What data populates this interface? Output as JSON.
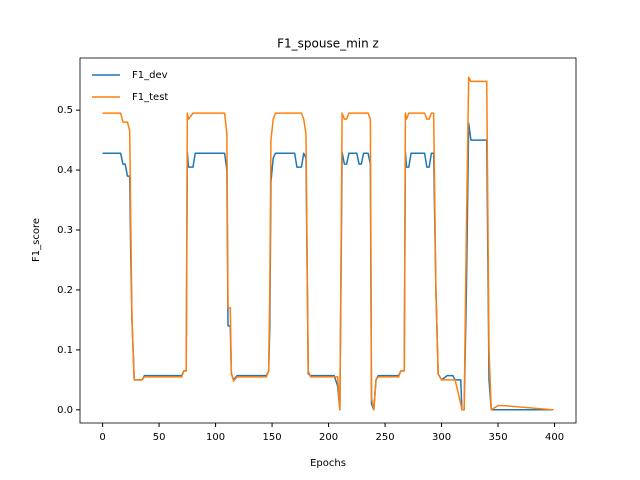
{
  "chart_data": {
    "type": "line",
    "title": "F1_spouse_min z",
    "x_label": "Epochs",
    "y_label": "F1_score",
    "x": [
      0,
      16,
      18,
      20,
      22,
      24,
      25,
      26,
      28,
      35,
      37,
      70,
      72,
      74,
      75,
      76,
      80,
      82,
      108,
      110,
      111,
      113,
      114,
      116,
      119,
      145,
      147,
      148,
      149,
      151,
      153,
      170,
      172,
      176,
      178,
      180,
      182,
      184,
      205,
      208,
      210,
      212,
      214,
      216,
      218,
      225,
      227,
      229,
      231,
      235,
      237,
      238,
      240,
      242,
      244,
      262,
      264,
      267,
      268,
      269,
      271,
      273,
      285,
      287,
      289,
      291,
      293,
      295,
      297,
      300,
      305,
      310,
      312,
      317,
      318,
      320,
      322,
      324,
      326,
      340,
      342,
      344,
      350,
      355,
      399
    ],
    "series": [
      {
        "name": "F1_dev",
        "color": "#1f77b4",
        "values": [
          0.428,
          0.428,
          0.41,
          0.41,
          0.39,
          0.39,
          0.25,
          0.15,
          0.05,
          0.05,
          0.057,
          0.057,
          0.065,
          0.065,
          0.43,
          0.405,
          0.405,
          0.428,
          0.428,
          0.4,
          0.14,
          0.14,
          0.06,
          0.05,
          0.057,
          0.057,
          0.065,
          0.14,
          0.38,
          0.42,
          0.428,
          0.428,
          0.405,
          0.405,
          0.428,
          0.42,
          0.06,
          0.057,
          0.057,
          0.04,
          0.0,
          0.43,
          0.41,
          0.41,
          0.428,
          0.428,
          0.41,
          0.41,
          0.428,
          0.428,
          0.41,
          0.01,
          0.0,
          0.05,
          0.057,
          0.057,
          0.065,
          0.065,
          0.43,
          0.405,
          0.405,
          0.428,
          0.428,
          0.405,
          0.405,
          0.428,
          0.428,
          0.2,
          0.06,
          0.05,
          0.057,
          0.057,
          0.05,
          0.05,
          0.0,
          0.0,
          0.2,
          0.478,
          0.45,
          0.45,
          0.05,
          0.0,
          0.0,
          0.0,
          0.0
        ]
      },
      {
        "name": "F1_test",
        "color": "#ff7f0e",
        "values": [
          0.495,
          0.495,
          0.48,
          0.48,
          0.48,
          0.465,
          0.3,
          0.15,
          0.05,
          0.05,
          0.055,
          0.055,
          0.065,
          0.065,
          0.495,
          0.485,
          0.495,
          0.495,
          0.495,
          0.46,
          0.17,
          0.17,
          0.06,
          0.048,
          0.055,
          0.055,
          0.065,
          0.2,
          0.45,
          0.485,
          0.495,
          0.495,
          0.495,
          0.495,
          0.485,
          0.46,
          0.065,
          0.055,
          0.055,
          0.055,
          0.0,
          0.495,
          0.485,
          0.485,
          0.495,
          0.495,
          0.495,
          0.495,
          0.495,
          0.495,
          0.485,
          0.02,
          0.0,
          0.05,
          0.055,
          0.055,
          0.065,
          0.065,
          0.495,
          0.485,
          0.495,
          0.495,
          0.495,
          0.485,
          0.485,
          0.495,
          0.495,
          0.2,
          0.06,
          0.05,
          0.05,
          0.05,
          0.05,
          0.01,
          0.0,
          0.0,
          0.3,
          0.555,
          0.548,
          0.548,
          0.1,
          0.0,
          0.007,
          0.007,
          0.0
        ]
      }
    ],
    "xlim": [
      -20,
      419
    ],
    "ylim": [
      -0.022,
      0.587
    ],
    "xticks": [
      0,
      50,
      100,
      150,
      200,
      250,
      300,
      350,
      400
    ],
    "yticks": [
      {
        "value": 0,
        "label": "0.0"
      },
      0.1,
      0.2,
      0.3,
      0.4,
      0.5
    ],
    "legend": "upper left"
  }
}
